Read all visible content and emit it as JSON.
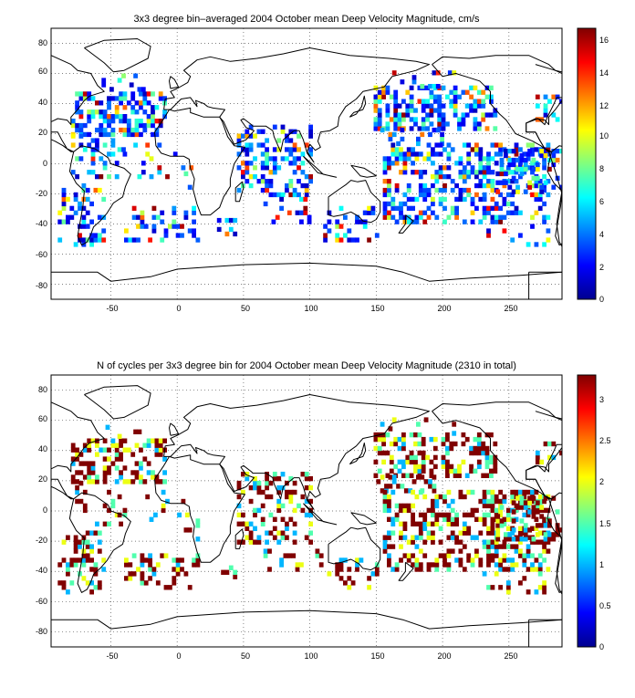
{
  "panels": [
    {
      "id": "velocity",
      "title": "3x3 degree bin–averaged 2004 October mean Deep Velocity Magnitude, cm/s",
      "xticks": [
        "-50",
        "0",
        "50",
        "100",
        "150",
        "200",
        "250"
      ],
      "yticks": [
        "80",
        "60",
        "40",
        "20",
        "0",
        "-20",
        "-40",
        "-60",
        "-80"
      ],
      "colorbar_ticks": [
        "16",
        "14",
        "12",
        "10",
        "8",
        "6",
        "4",
        "2",
        "0"
      ],
      "colorbar_range": [
        0,
        16.5
      ],
      "colormap": "jet"
    },
    {
      "id": "cycles",
      "title": "N of cycles per 3x3 degree bin for 2004 October mean Deep Velocity Magnitude (2310 in total)",
      "xticks": [
        "-50",
        "0",
        "50",
        "100",
        "150",
        "200",
        "250"
      ],
      "yticks": [
        "80",
        "60",
        "40",
        "20",
        "0",
        "-20",
        "-40",
        "-60",
        "-80"
      ],
      "colorbar_ticks": [
        "3",
        "2.5",
        "2",
        "1.5",
        "1",
        "0.5",
        "0"
      ],
      "colorbar_range": [
        0,
        3.3
      ],
      "colormap": "jet"
    }
  ],
  "chart_data": [
    {
      "type": "heatmap",
      "title": "3x3 degree bin–averaged 2004 October mean Deep Velocity Magnitude, cm/s",
      "xlim": [
        -95,
        290
      ],
      "ylim": [
        -90,
        90
      ],
      "clim": [
        0,
        16.5
      ],
      "grid": true,
      "colorbar": "right",
      "colors": {
        "low": "#00008f",
        "high": "#800000"
      }
    },
    {
      "type": "heatmap",
      "title": "N of cycles per 3x3 degree bin for 2004 October mean Deep Velocity Magnitude (2310 in total)",
      "xlim": [
        -95,
        290
      ],
      "ylim": [
        -90,
        90
      ],
      "clim": [
        0,
        3.3
      ],
      "grid": true,
      "colorbar": "right",
      "colors": {
        "low": "#00008f",
        "high": "#800000"
      }
    }
  ]
}
